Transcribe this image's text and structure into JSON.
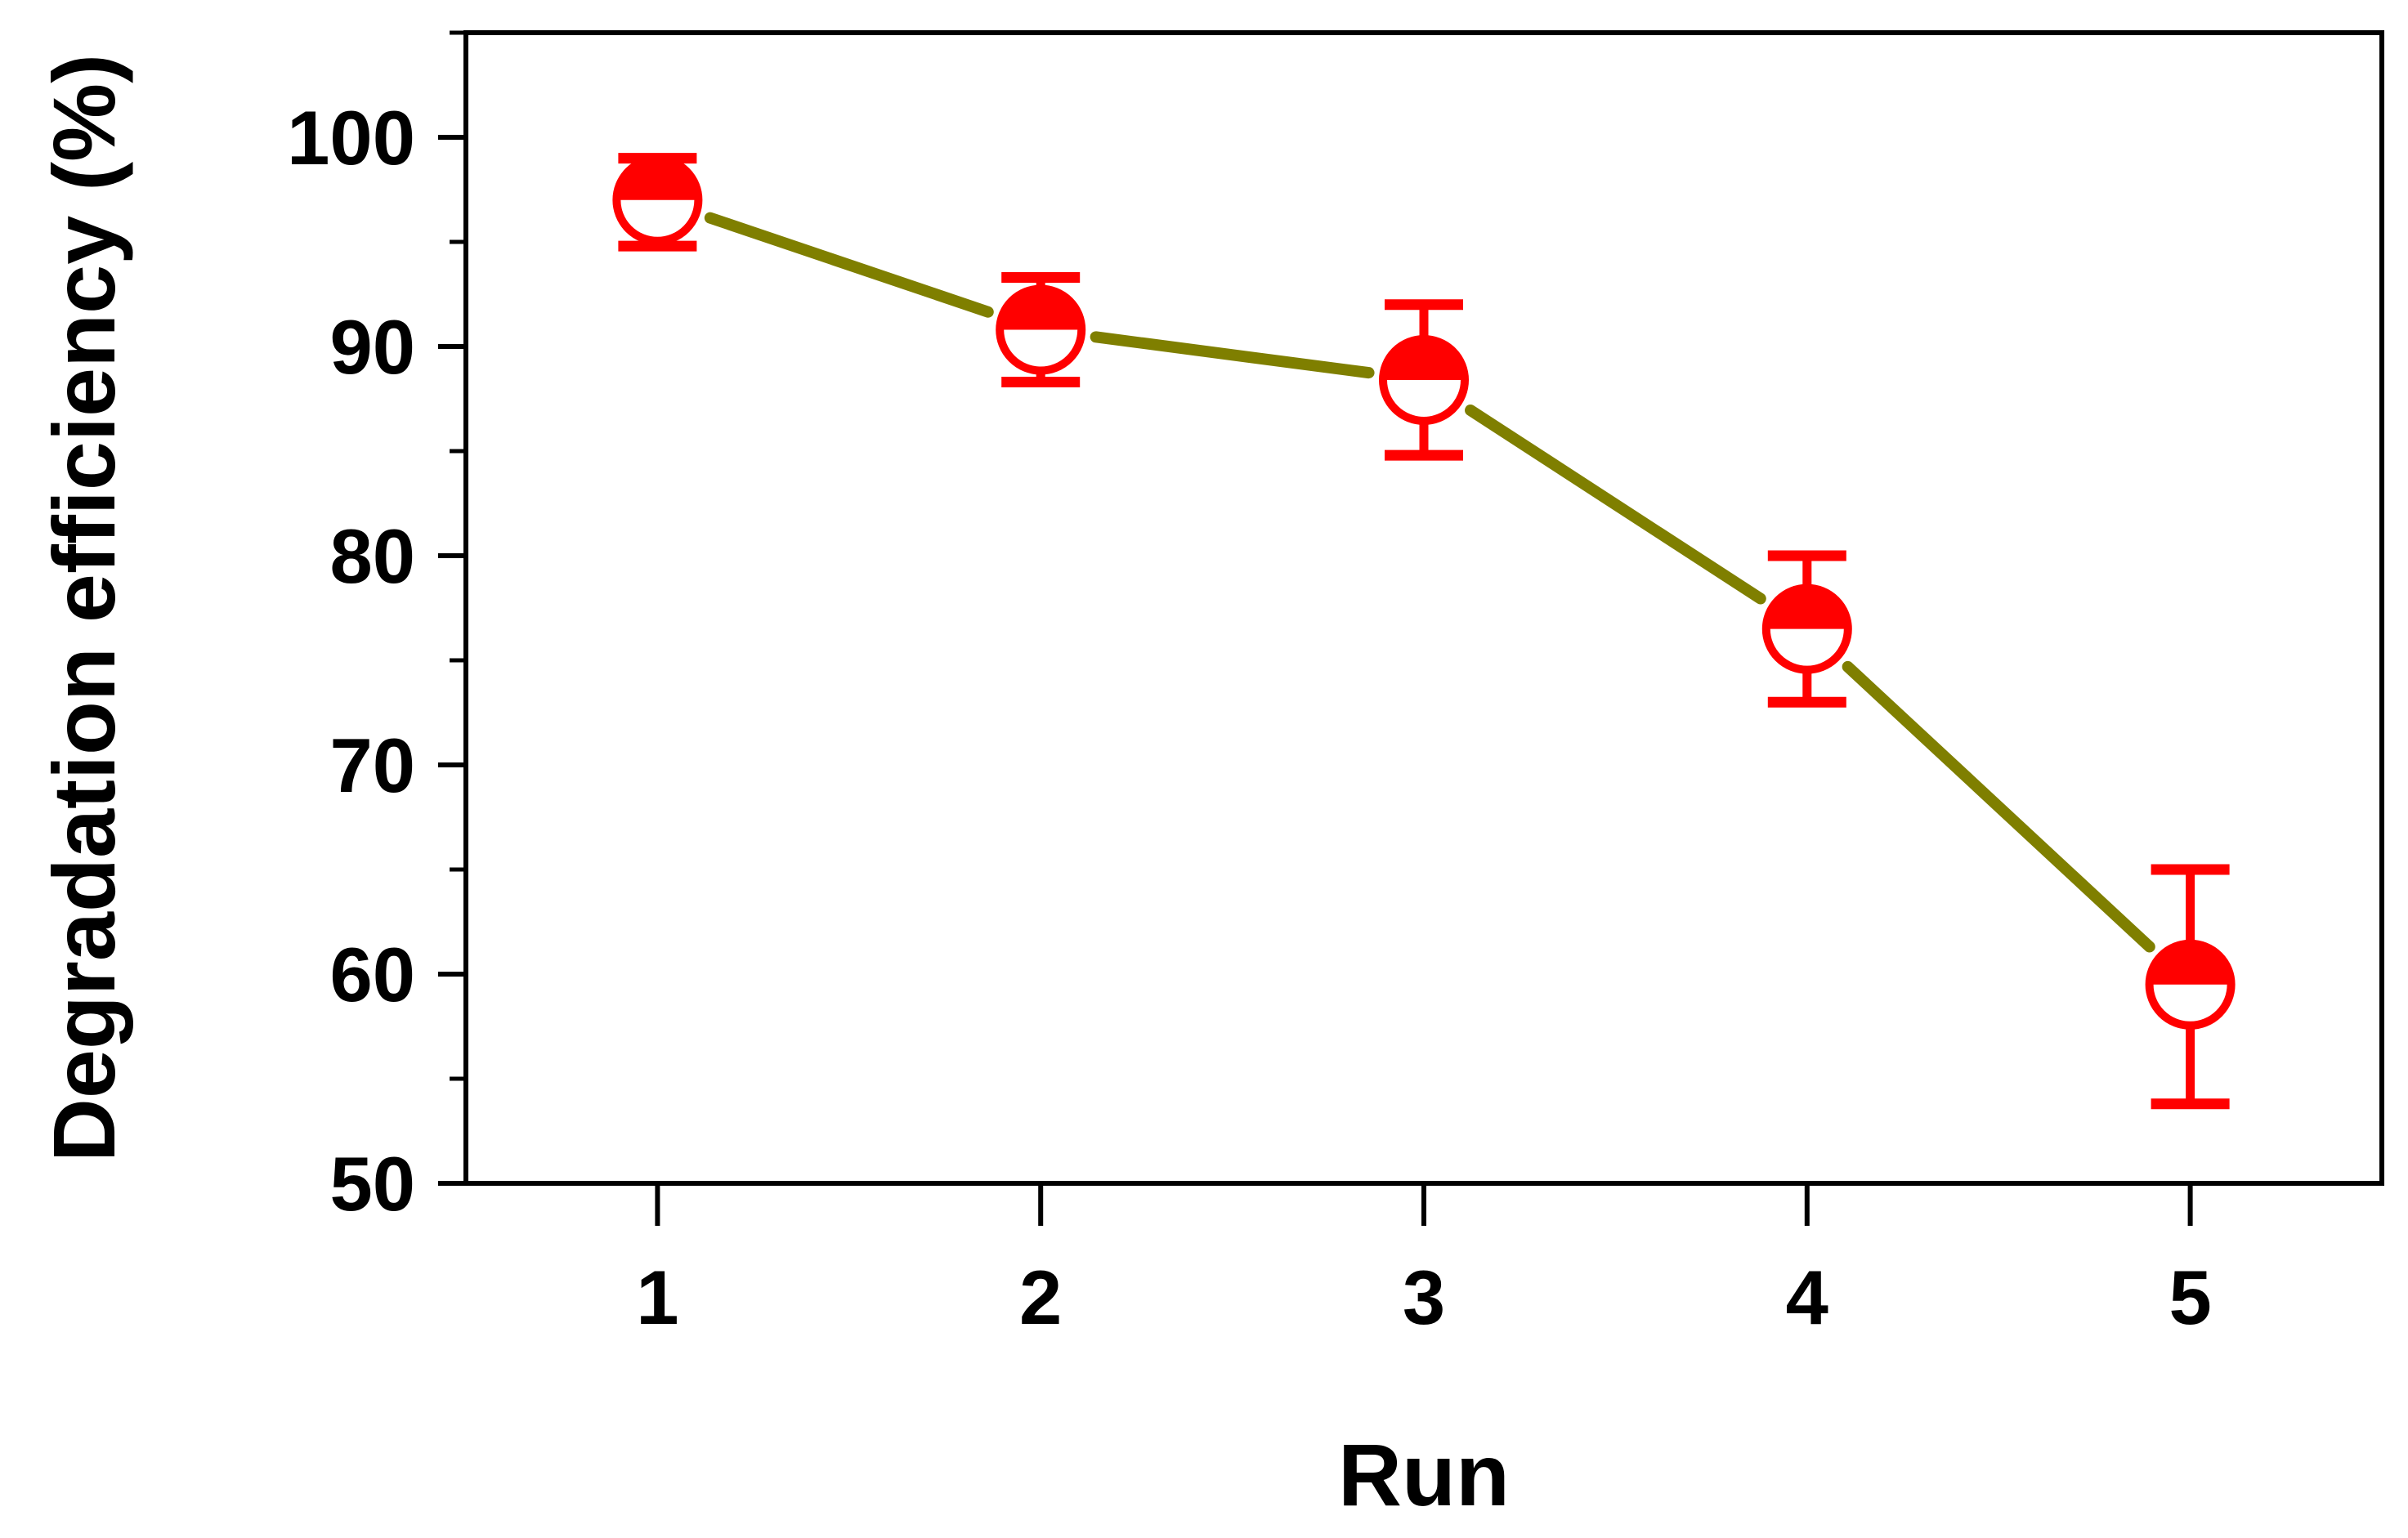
{
  "chart_data": {
    "type": "line",
    "title": "",
    "xlabel": "Run",
    "ylabel": "Degradation efficiency (%)",
    "categories": [
      "1",
      "2",
      "3",
      "4",
      "5"
    ],
    "x": [
      1,
      2,
      3,
      4,
      5
    ],
    "series": [
      {
        "values": [
          97.0,
          90.8,
          88.4,
          76.5,
          59.5
        ],
        "error_upper": [
          99.0,
          93.3,
          92.0,
          80.0,
          65.0
        ],
        "error_lower": [
          94.8,
          88.3,
          84.8,
          73.0,
          53.8
        ]
      }
    ],
    "ylim": [
      50,
      105
    ],
    "xlim": [
      0.5,
      5.5
    ],
    "y_ticks": [
      "50",
      "60",
      "70",
      "80",
      "90",
      "100"
    ],
    "x_ticks": [
      "1",
      "2",
      "3",
      "4",
      "5"
    ],
    "grid": false,
    "legend": "none",
    "marker": "half-filled circle (top half filled)",
    "colors": {
      "line": "#7f7f00",
      "marker": "#ff0000",
      "axis": "#000000"
    }
  }
}
